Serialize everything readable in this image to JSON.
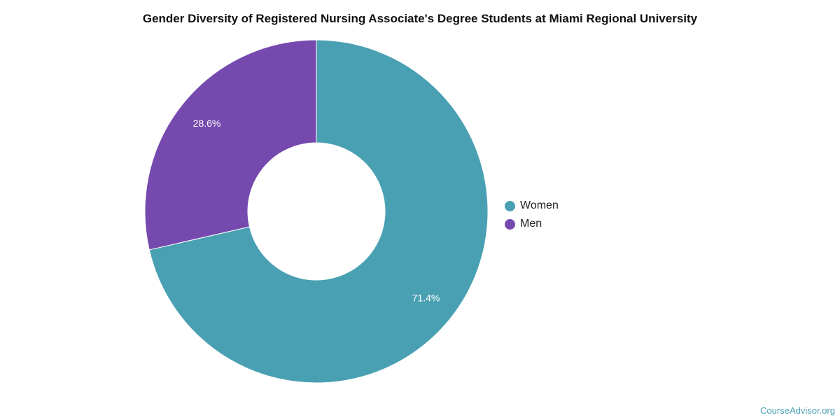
{
  "chart_data": {
    "type": "pie",
    "variant": "donut",
    "title": "Gender Diversity of Registered Nursing Associate's Degree Students at Miami Regional University",
    "categories": [
      "Women",
      "Men"
    ],
    "values": [
      71.4,
      28.6
    ],
    "data_labels": [
      "71.4%",
      "28.6%"
    ],
    "colors": [
      "#4aa0b3",
      "#7549ae"
    ],
    "legend_position": "right"
  },
  "watermark": "CourseAdvisor.org"
}
